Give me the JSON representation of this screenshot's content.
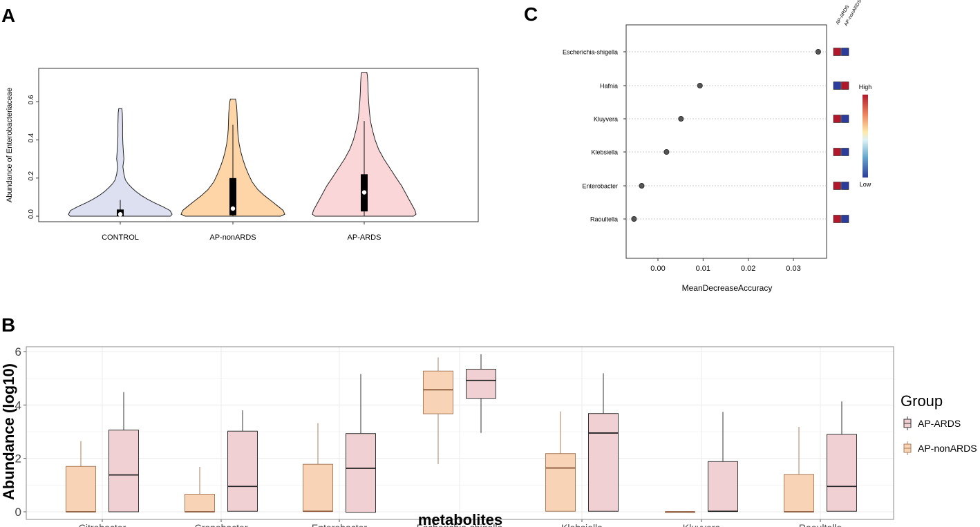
{
  "panels": {
    "a": "A",
    "b": "B",
    "c": "C"
  },
  "colors": {
    "control": "#dde0f0",
    "nonards": "#fdd5a6",
    "ards": "#fbd6d8",
    "box_nonards": "#f8d3b5",
    "box_ards": "#f0d0d2",
    "high": "#b2182b",
    "low": "#2c3c9c"
  },
  "chart_data": [
    {
      "type": "violin",
      "panel": "A",
      "ylabel": "Abundance of Enterobacteriaceae",
      "ylim": [
        0,
        0.76
      ],
      "yticks": [
        0.0,
        0.2,
        0.4,
        0.6
      ],
      "ytick_labels": [
        "0.0",
        "0.2",
        "0.4",
        "0.6"
      ],
      "categories": [
        "CONTROL",
        "AP-nonARDS",
        "AP-ARDS"
      ],
      "series": [
        {
          "name": "CONTROL",
          "max": 0.565,
          "whisker_low": 0.0,
          "whisker_high": 0.085,
          "q1": 0.0,
          "q3": 0.035,
          "median": 0.01,
          "density": [
            [
              0,
              0.97
            ],
            [
              0.01,
              1.0
            ],
            [
              0.03,
              0.96
            ],
            [
              0.05,
              0.82
            ],
            [
              0.07,
              0.66
            ],
            [
              0.09,
              0.52
            ],
            [
              0.11,
              0.4
            ],
            [
              0.13,
              0.3
            ],
            [
              0.15,
              0.22
            ],
            [
              0.17,
              0.15
            ],
            [
              0.19,
              0.1
            ],
            [
              0.22,
              0.07
            ],
            [
              0.26,
              0.05
            ],
            [
              0.3,
              0.07
            ],
            [
              0.34,
              0.06
            ],
            [
              0.38,
              0.05
            ],
            [
              0.42,
              0.045
            ],
            [
              0.48,
              0.045
            ],
            [
              0.54,
              0.04
            ],
            [
              0.565,
              0.03
            ]
          ]
        },
        {
          "name": "AP-nonARDS",
          "max": 0.615,
          "whisker_low": 0.0,
          "whisker_high": 0.48,
          "q1": 0.005,
          "q3": 0.2,
          "median": 0.04,
          "density": [
            [
              0,
              0.92
            ],
            [
              0.01,
              1.0
            ],
            [
              0.03,
              0.97
            ],
            [
              0.05,
              0.88
            ],
            [
              0.08,
              0.74
            ],
            [
              0.11,
              0.6
            ],
            [
              0.14,
              0.48
            ],
            [
              0.18,
              0.37
            ],
            [
              0.22,
              0.3
            ],
            [
              0.26,
              0.24
            ],
            [
              0.3,
              0.19
            ],
            [
              0.34,
              0.15
            ],
            [
              0.38,
              0.12
            ],
            [
              0.42,
              0.1
            ],
            [
              0.46,
              0.09
            ],
            [
              0.5,
              0.085
            ],
            [
              0.54,
              0.08
            ],
            [
              0.58,
              0.07
            ],
            [
              0.6,
              0.06
            ],
            [
              0.615,
              0.05
            ]
          ]
        },
        {
          "name": "AP-ARDS",
          "max": 0.755,
          "whisker_low": 0.0,
          "whisker_high": 0.5,
          "q1": 0.025,
          "q3": 0.22,
          "median": 0.125,
          "density": [
            [
              0,
              0.95
            ],
            [
              0.01,
              1.0
            ],
            [
              0.03,
              0.98
            ],
            [
              0.06,
              0.92
            ],
            [
              0.09,
              0.86
            ],
            [
              0.12,
              0.8
            ],
            [
              0.16,
              0.72
            ],
            [
              0.2,
              0.62
            ],
            [
              0.25,
              0.5
            ],
            [
              0.3,
              0.38
            ],
            [
              0.35,
              0.28
            ],
            [
              0.4,
              0.21
            ],
            [
              0.45,
              0.16
            ],
            [
              0.5,
              0.12
            ],
            [
              0.55,
              0.1
            ],
            [
              0.6,
              0.085
            ],
            [
              0.65,
              0.075
            ],
            [
              0.7,
              0.07
            ],
            [
              0.74,
              0.06
            ],
            [
              0.755,
              0.05
            ]
          ]
        }
      ]
    },
    {
      "type": "dot",
      "panel": "C",
      "xlabel": "MeanDecreaseAccuracy",
      "xlim": [
        -0.007,
        0.037
      ],
      "xticks": [
        0.0,
        0.01,
        0.02,
        0.03
      ],
      "xtick_labels": [
        "0.00",
        "0.01",
        "0.02",
        "0.03"
      ],
      "categories": [
        "Escherichia-shigella",
        "Hafnia",
        "Kluyvera",
        "Klebsiella",
        "Enterobacter",
        "Raoultella"
      ],
      "values": [
        0.0355,
        0.0093,
        0.0051,
        0.0019,
        -0.0036,
        -0.0053
      ],
      "heatmap_columns": [
        "AP-ARDS",
        "AP-nonARDS"
      ],
      "heatmap": [
        [
          "high",
          "low"
        ],
        [
          "low",
          "high"
        ],
        [
          "high",
          "low"
        ],
        [
          "high",
          "low"
        ],
        [
          "high",
          "low"
        ],
        [
          "high",
          "low"
        ]
      ],
      "colorbar": {
        "high": "High",
        "low": "Low"
      }
    },
    {
      "type": "box",
      "panel": "B",
      "ylabel": "Abundance (log10)",
      "xlabel": "metabolites",
      "ylim": [
        -0.3,
        6.2
      ],
      "yticks": [
        0,
        2,
        4,
        6
      ],
      "ytick_labels": [
        "0",
        "2",
        "4",
        "6"
      ],
      "categories": [
        "Citrobacter",
        "Cronobacter",
        "Enterobacter",
        "Escherichia-shigella",
        "Klebsiella",
        "Kluyvera",
        "Raoultella"
      ],
      "legend_title": "Group",
      "legend": [
        "AP-ARDS",
        "AP-nonARDS"
      ],
      "series": [
        {
          "name": "AP-nonARDS",
          "boxes": [
            {
              "whisker_low": 0,
              "q1": 0,
              "median": 0,
              "q3": 1.7,
              "whisker_high": 2.65
            },
            {
              "whisker_low": 0,
              "q1": 0,
              "median": 0,
              "q3": 0.66,
              "whisker_high": 1.68
            },
            {
              "whisker_low": 0.02,
              "q1": 0.02,
              "median": 0.02,
              "q3": 1.78,
              "whisker_high": 3.32
            },
            {
              "whisker_low": 1.78,
              "q1": 3.67,
              "median": 4.57,
              "q3": 5.27,
              "whisker_high": 5.78
            },
            {
              "whisker_low": 0.02,
              "q1": 0.02,
              "median": 1.64,
              "q3": 2.18,
              "whisker_high": 3.76
            },
            {
              "whisker_low": 0,
              "q1": 0,
              "median": 0,
              "q3": 0,
              "whisker_high": 0
            },
            {
              "whisker_low": 0,
              "q1": 0,
              "median": 0,
              "q3": 1.4,
              "whisker_high": 3.18
            }
          ]
        },
        {
          "name": "AP-ARDS",
          "boxes": [
            {
              "whisker_low": 0,
              "q1": 0,
              "median": 1.38,
              "q3": 3.06,
              "whisker_high": 4.48
            },
            {
              "whisker_low": 0.02,
              "q1": 0.02,
              "median": 0.95,
              "q3": 3.02,
              "whisker_high": 3.8
            },
            {
              "whisker_low": -0.02,
              "q1": -0.02,
              "median": 1.63,
              "q3": 2.93,
              "whisker_high": 5.16
            },
            {
              "whisker_low": 2.95,
              "q1": 4.25,
              "median": 4.92,
              "q3": 5.34,
              "whisker_high": 5.9
            },
            {
              "whisker_low": 0.02,
              "q1": 0.02,
              "median": 2.95,
              "q3": 3.68,
              "whisker_high": 5.19
            },
            {
              "whisker_low": 0.02,
              "q1": 0.02,
              "median": 0.02,
              "q3": 1.88,
              "whisker_high": 3.74
            },
            {
              "whisker_low": 0.02,
              "q1": 0.02,
              "median": 0.95,
              "q3": 2.9,
              "whisker_high": 4.13
            }
          ]
        }
      ]
    }
  ]
}
